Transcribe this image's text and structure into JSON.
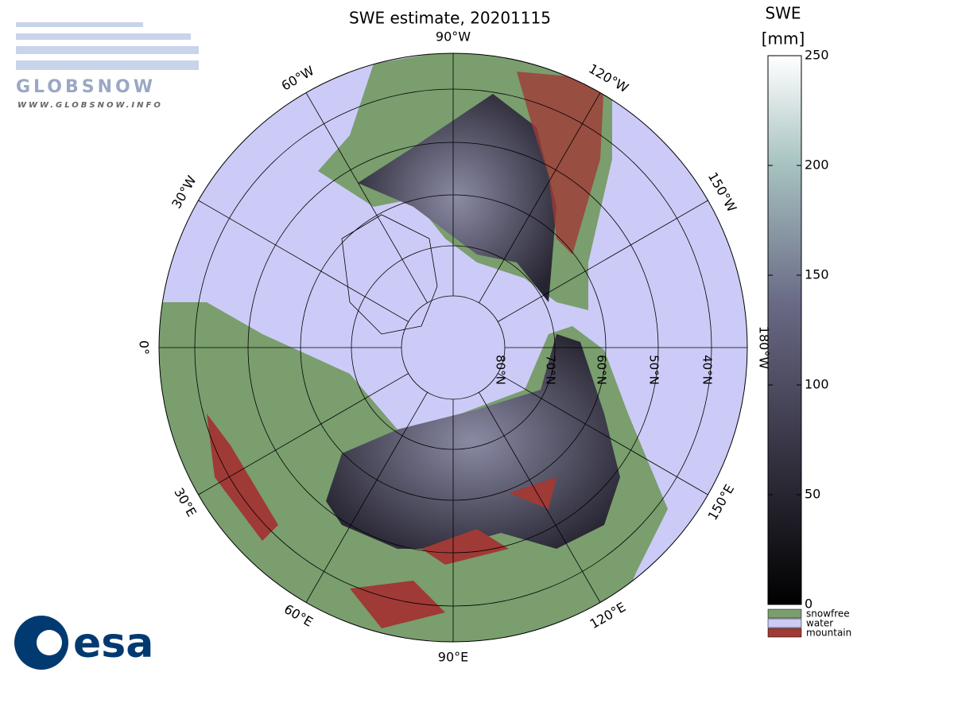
{
  "header": {
    "title": "SWE estimate, 20201115"
  },
  "map": {
    "meridian_labels": [
      "90°W",
      "60°W",
      "30°W",
      "0°",
      "30°E",
      "60°E",
      "90°E",
      "120°E",
      "150°E",
      "180°W",
      "150°W",
      "120°W"
    ],
    "parallel_labels": [
      "80°N",
      "70°N",
      "60°N",
      "50°N",
      "40°N"
    ]
  },
  "colorbar": {
    "label": "SWE",
    "unit": "[mm]",
    "range": [
      0,
      250
    ],
    "ticks": [
      0,
      50,
      100,
      150,
      200,
      250
    ],
    "legend": [
      {
        "name": "snowfree",
        "color": "#7a9e6e"
      },
      {
        "name": "water",
        "color": "#cccbf7"
      },
      {
        "name": "mountain",
        "color": "#a03a36"
      }
    ]
  },
  "logos": {
    "globsnow": "GLOBSNOW",
    "globsnow_url": "WWW.GLOBSNOW.INFO",
    "esa": "esa"
  }
}
